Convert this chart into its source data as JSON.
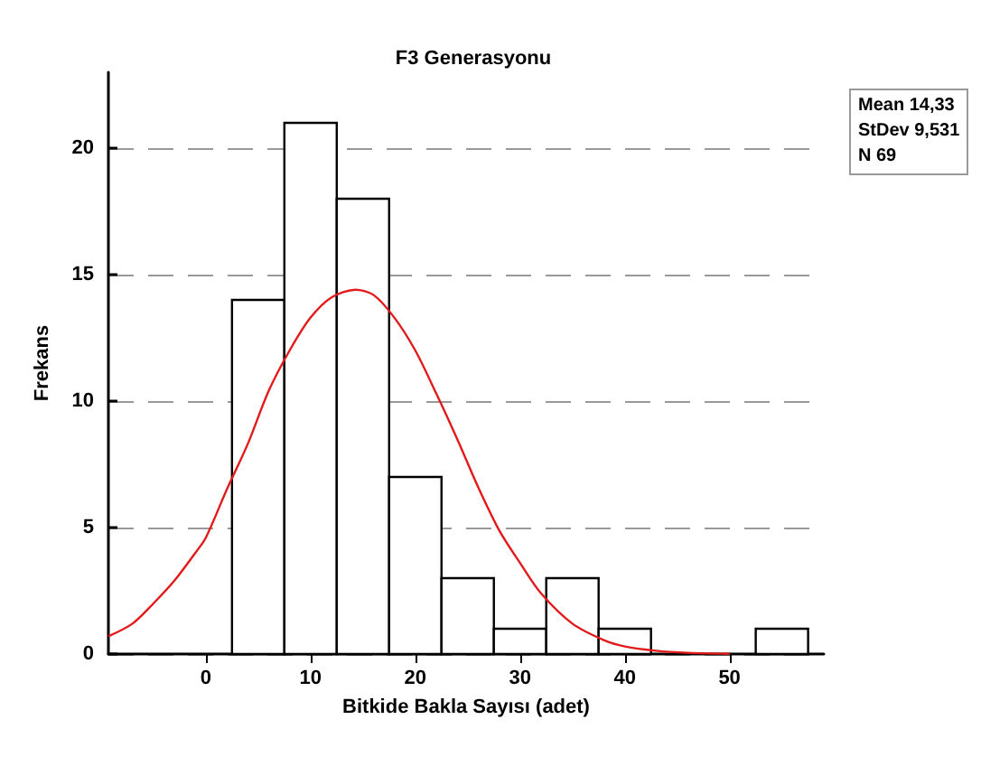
{
  "chart_data": {
    "type": "histogram",
    "title": "F3 Generasyonu",
    "xlabel": "Bitkide Bakla Sayısı (adet)",
    "ylabel": "Frekans",
    "bins": [
      2.5,
      7.5,
      12.5,
      17.5,
      22.5,
      27.5,
      32.5,
      37.5,
      42.5,
      47.5,
      52.5,
      57.5
    ],
    "values": [
      14,
      21,
      18,
      7,
      3,
      1,
      3,
      1,
      0,
      0,
      1
    ],
    "color": "#ffffff",
    "series": [
      {
        "type": "line",
        "color": "#e31a1c",
        "x": [
          -9.3,
          -7,
          -5,
          -3,
          -1,
          0,
          2,
          4,
          6,
          8,
          10,
          12,
          14.3,
          16,
          18,
          20,
          22,
          24,
          26,
          28,
          30,
          32,
          35,
          38,
          40,
          43,
          46,
          50
        ],
        "values": [
          0.7,
          1.2,
          2.0,
          2.9,
          4.0,
          4.6,
          6.5,
          8.3,
          10.4,
          12.0,
          13.3,
          14.1,
          14.4,
          14.2,
          13.3,
          12.0,
          10.3,
          8.5,
          6.6,
          4.9,
          3.6,
          2.4,
          1.2,
          0.55,
          0.3,
          0.13,
          0.05,
          0.01
        ]
      }
    ],
    "xlim": [
      -9.3,
      59
    ],
    "xticks": [
      0,
      10,
      20,
      30,
      40,
      50
    ],
    "ylim": [
      0,
      23
    ],
    "yticks": [
      0,
      5,
      10,
      15,
      20
    ],
    "grid": "y",
    "line_style": "solid",
    "marker": "none",
    "annotations": [
      "Mean 14,33",
      "StDev 9,531",
      "N 69"
    ]
  }
}
